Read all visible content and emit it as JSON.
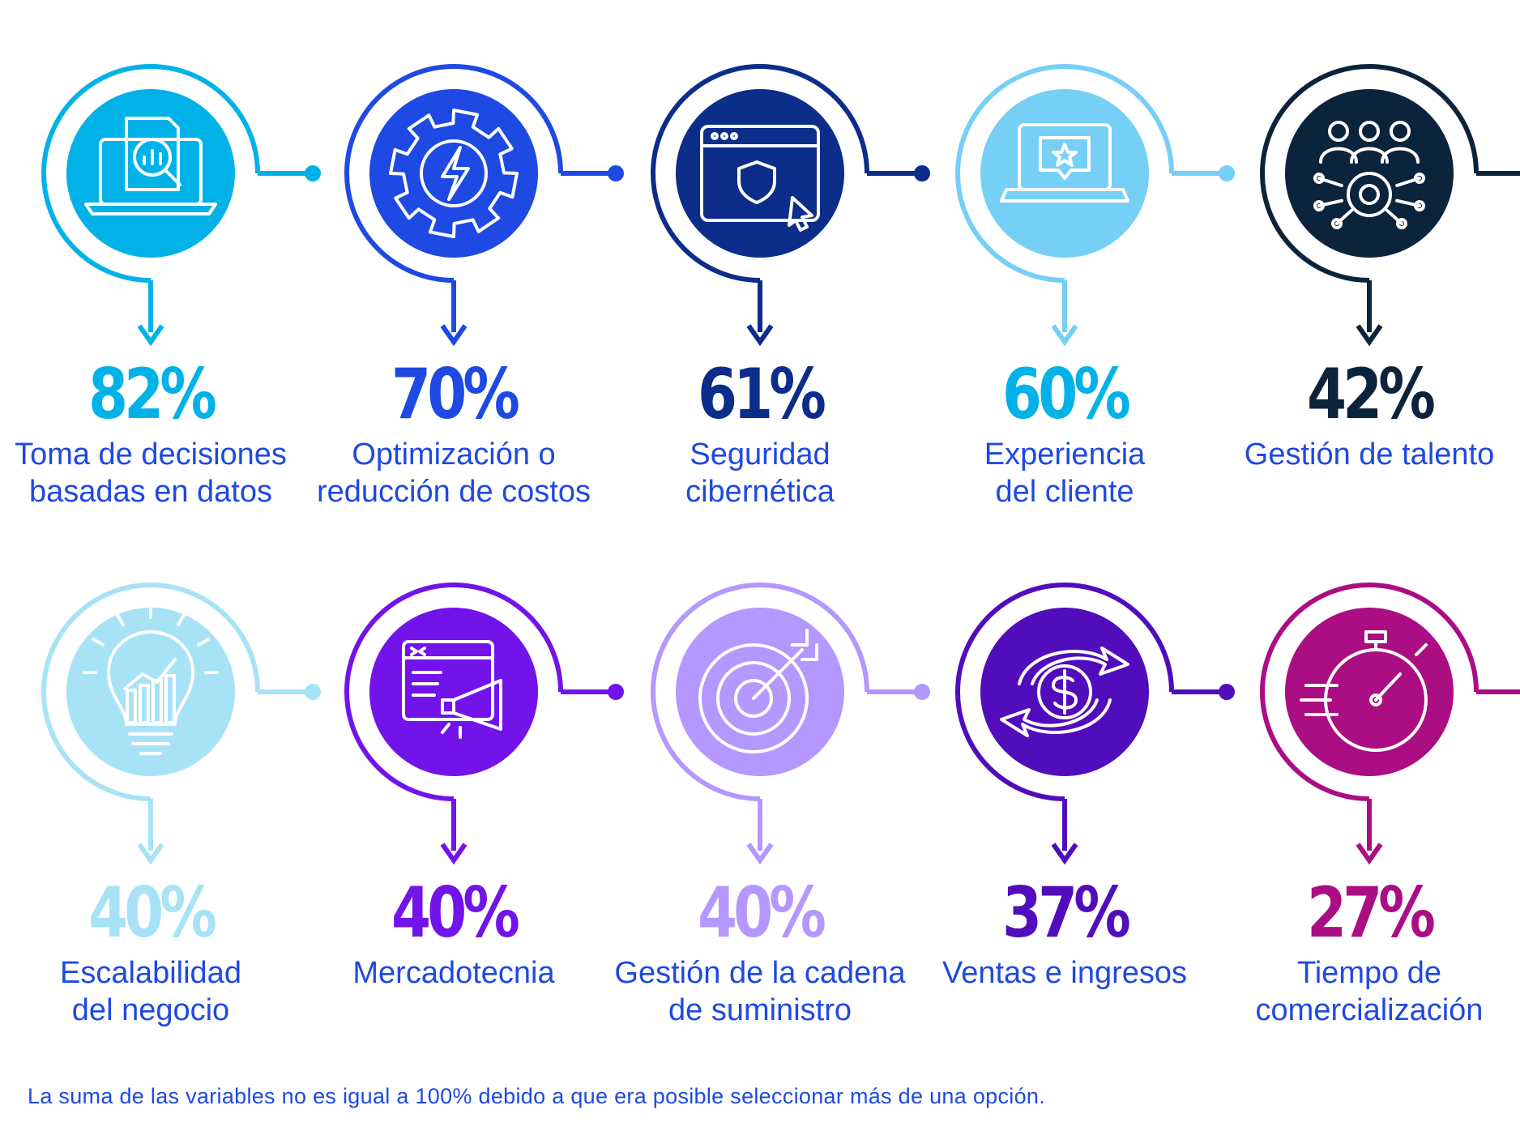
{
  "chart_data": {
    "type": "bar",
    "categories": [
      "Toma de decisiones basadas en datos",
      "Optimización o reducción de costos",
      "Seguridad cibernética",
      "Experiencia del cliente",
      "Gestión de talento",
      "Escalabilidad del negocio",
      "Mercadotecnia",
      "Gestión de la cadena de suministro",
      "Ventas e ingresos",
      "Tiempo de comercialización"
    ],
    "values": [
      82,
      70,
      61,
      60,
      42,
      40,
      40,
      40,
      37,
      27
    ],
    "unit": "%"
  },
  "items": [
    {
      "value": "82%",
      "label": "Toma de decisiones\nbasadas en datos",
      "color": "#00b2e8",
      "circle": "#00b2e8",
      "icon": "data-report-icon"
    },
    {
      "value": "70%",
      "label": "Optimización o\nreducción de costos",
      "color": "#1e49e2",
      "circle": "#1e49e2",
      "icon": "gear-lightning-icon"
    },
    {
      "value": "61%",
      "label": "Seguridad\ncibernética",
      "color": "#0c2d8a",
      "circle": "#0c2d8a",
      "icon": "browser-shield-icon"
    },
    {
      "value": "60%",
      "label": "Experiencia\ndel cliente",
      "color": "#00b2e8",
      "circle": "#76cff5",
      "icon": "laptop-star-icon"
    },
    {
      "value": "42%",
      "label": "Gestión de talento",
      "color": "#0c233c",
      "circle": "#0c233c",
      "icon": "people-gear-icon"
    },
    {
      "value": "40%",
      "label": "Escalabilidad\ndel negocio",
      "color": "#a8e2f6",
      "circle": "#a8e2f6",
      "icon": "lightbulb-chart-icon"
    },
    {
      "value": "40%",
      "label": "Mercadotecnia",
      "color": "#7213ea",
      "circle": "#7213ea",
      "icon": "browser-megaphone-icon"
    },
    {
      "value": "40%",
      "label": "Gestión de la cadena\nde suministro",
      "color": "#b497ff",
      "circle": "#b497ff",
      "icon": "target-arrow-icon"
    },
    {
      "value": "37%",
      "label": "Ventas e ingresos",
      "color": "#510dbc",
      "circle": "#510dbc",
      "icon": "dollar-exchange-icon"
    },
    {
      "value": "27%",
      "label": "Tiempo de\ncomercialización",
      "color": "#ab0d82",
      "circle": "#ab0d82",
      "icon": "stopwatch-icon"
    }
  ],
  "label_color": "#1e49e2",
  "footnote": "La suma de las variables no es igual a 100% debido a que era posible seleccionar más de una opción."
}
